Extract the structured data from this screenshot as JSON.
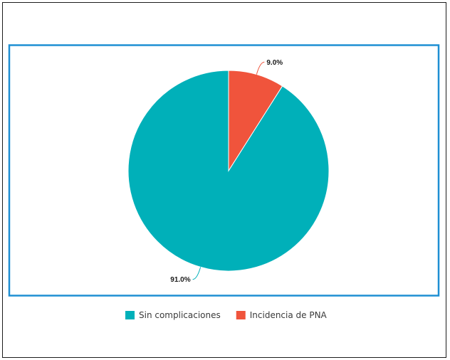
{
  "chart_data": {
    "type": "pie",
    "start_angle_deg": 0,
    "direction": "counterclockwise",
    "slices": [
      {
        "name": "Sin complicaciones",
        "value": 91.0,
        "label": "91.0%",
        "color": "#00b0b9"
      },
      {
        "name": "Incidencia de PNA",
        "value": 9.0,
        "label": "9.0%",
        "color": "#f0543c"
      }
    ],
    "legend_position": "bottom",
    "frame_color": "#1e8fd3"
  }
}
